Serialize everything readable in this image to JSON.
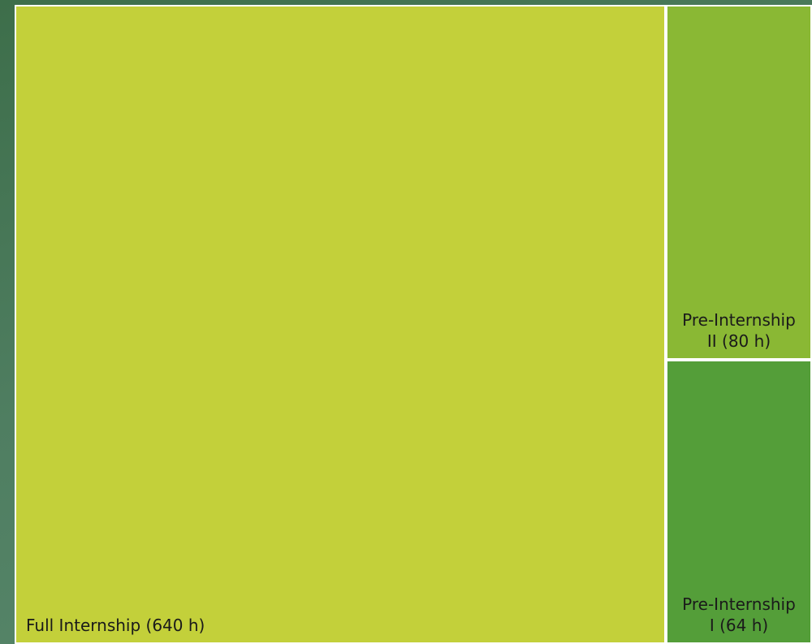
{
  "chart_data": {
    "type": "treemap",
    "title": "",
    "items": [
      {
        "name": "Full Internship (640 h)",
        "value": 640,
        "color": "#c3d03a"
      },
      {
        "name": "Pre-Internship\nII (80 h)",
        "value": 80,
        "color": "#8ab834"
      },
      {
        "name": "Pre-Internship\nI (64 h)",
        "value": 64,
        "color": "#549e39"
      }
    ],
    "legend": "none",
    "grid": false
  }
}
